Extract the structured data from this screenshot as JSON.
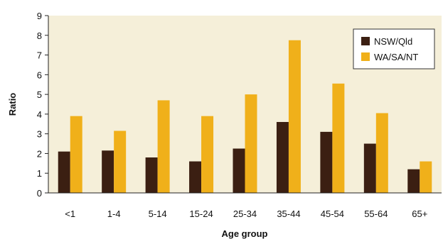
{
  "chart_data": {
    "type": "bar",
    "title": "",
    "xlabel": "Age group",
    "ylabel": "Ratio",
    "ylim": [
      0,
      9
    ],
    "yticks": [
      0,
      1,
      2,
      3,
      4,
      5,
      6,
      7,
      8,
      9
    ],
    "categories": [
      "<1",
      "1-4",
      "5-14",
      "15-24",
      "25-34",
      "35-44",
      "45-54",
      "55-64",
      "65+"
    ],
    "series": [
      {
        "name": "NSW/Qld",
        "color": "#3b1f12",
        "values": [
          2.1,
          2.15,
          1.8,
          1.6,
          2.25,
          3.6,
          3.1,
          2.5,
          1.2
        ]
      },
      {
        "name": "WA/SA/NT",
        "color": "#f0b01a",
        "values": [
          3.9,
          3.15,
          4.7,
          3.9,
          5.0,
          7.75,
          5.55,
          4.05,
          1.6
        ]
      }
    ],
    "grid": false,
    "legend_position": "top-right",
    "background_color": "#f5efd9"
  }
}
